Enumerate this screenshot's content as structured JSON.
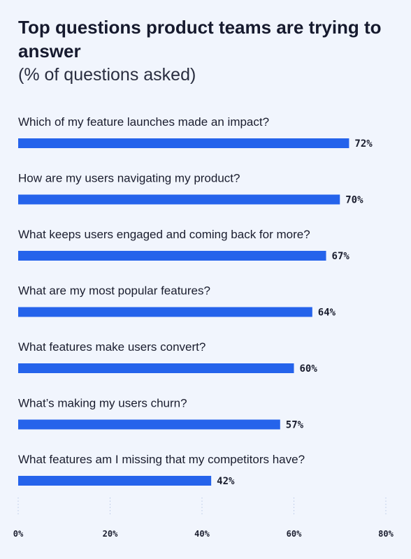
{
  "header": {
    "title": "Top questions product teams are trying to answer",
    "subtitle": "(% of questions asked)"
  },
  "chart_data": {
    "type": "bar",
    "orientation": "horizontal",
    "categories": [
      "Which of my feature launches made an impact?",
      "How are my users navigating my product?",
      "What keeps users engaged and coming back for more?",
      "What are my most popular features?",
      "What features make users convert?",
      "What’s making my users churn?",
      "What features am I missing that my competitors have?"
    ],
    "values": [
      72,
      70,
      67,
      64,
      60,
      57,
      42
    ],
    "data_labels": [
      "72%",
      "70%",
      "67%",
      "64%",
      "60%",
      "57%",
      "42%"
    ],
    "xlim": [
      0,
      80
    ],
    "ticks": [
      0,
      20,
      40,
      60,
      80
    ],
    "tick_labels": [
      "0%",
      "20%",
      "40%",
      "60%",
      "80%"
    ],
    "grid": "dotted vertical",
    "bar_color": "#2563eb",
    "text_color": "#1a1d2e",
    "background": "#f1f5fd"
  }
}
